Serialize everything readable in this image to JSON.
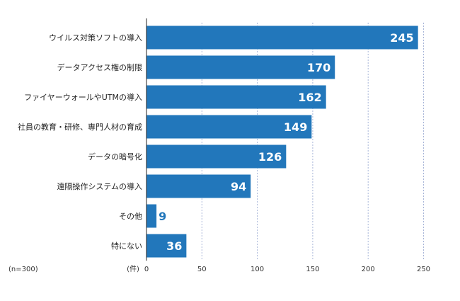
{
  "chart_data": {
    "type": "bar",
    "orientation": "horizontal",
    "categories": [
      "ウイルス対策ソフトの導入",
      "データアクセス権の制限",
      "ファイヤーウォールやUTMの導入",
      "社員の教育・研修、専門人材の育成",
      "データの暗号化",
      "遠隔操作システムの導入",
      "その他",
      "特にない"
    ],
    "values": [
      245,
      170,
      162,
      149,
      126,
      94,
      9,
      36
    ],
    "xticks": [
      0,
      50,
      100,
      150,
      200,
      250
    ],
    "xlim": [
      0,
      250
    ],
    "unit_label": "(件)",
    "sample_label": "(n=300)",
    "bar_color": "#2277bb",
    "outside_label_color": "#2277bb",
    "grid": true
  }
}
